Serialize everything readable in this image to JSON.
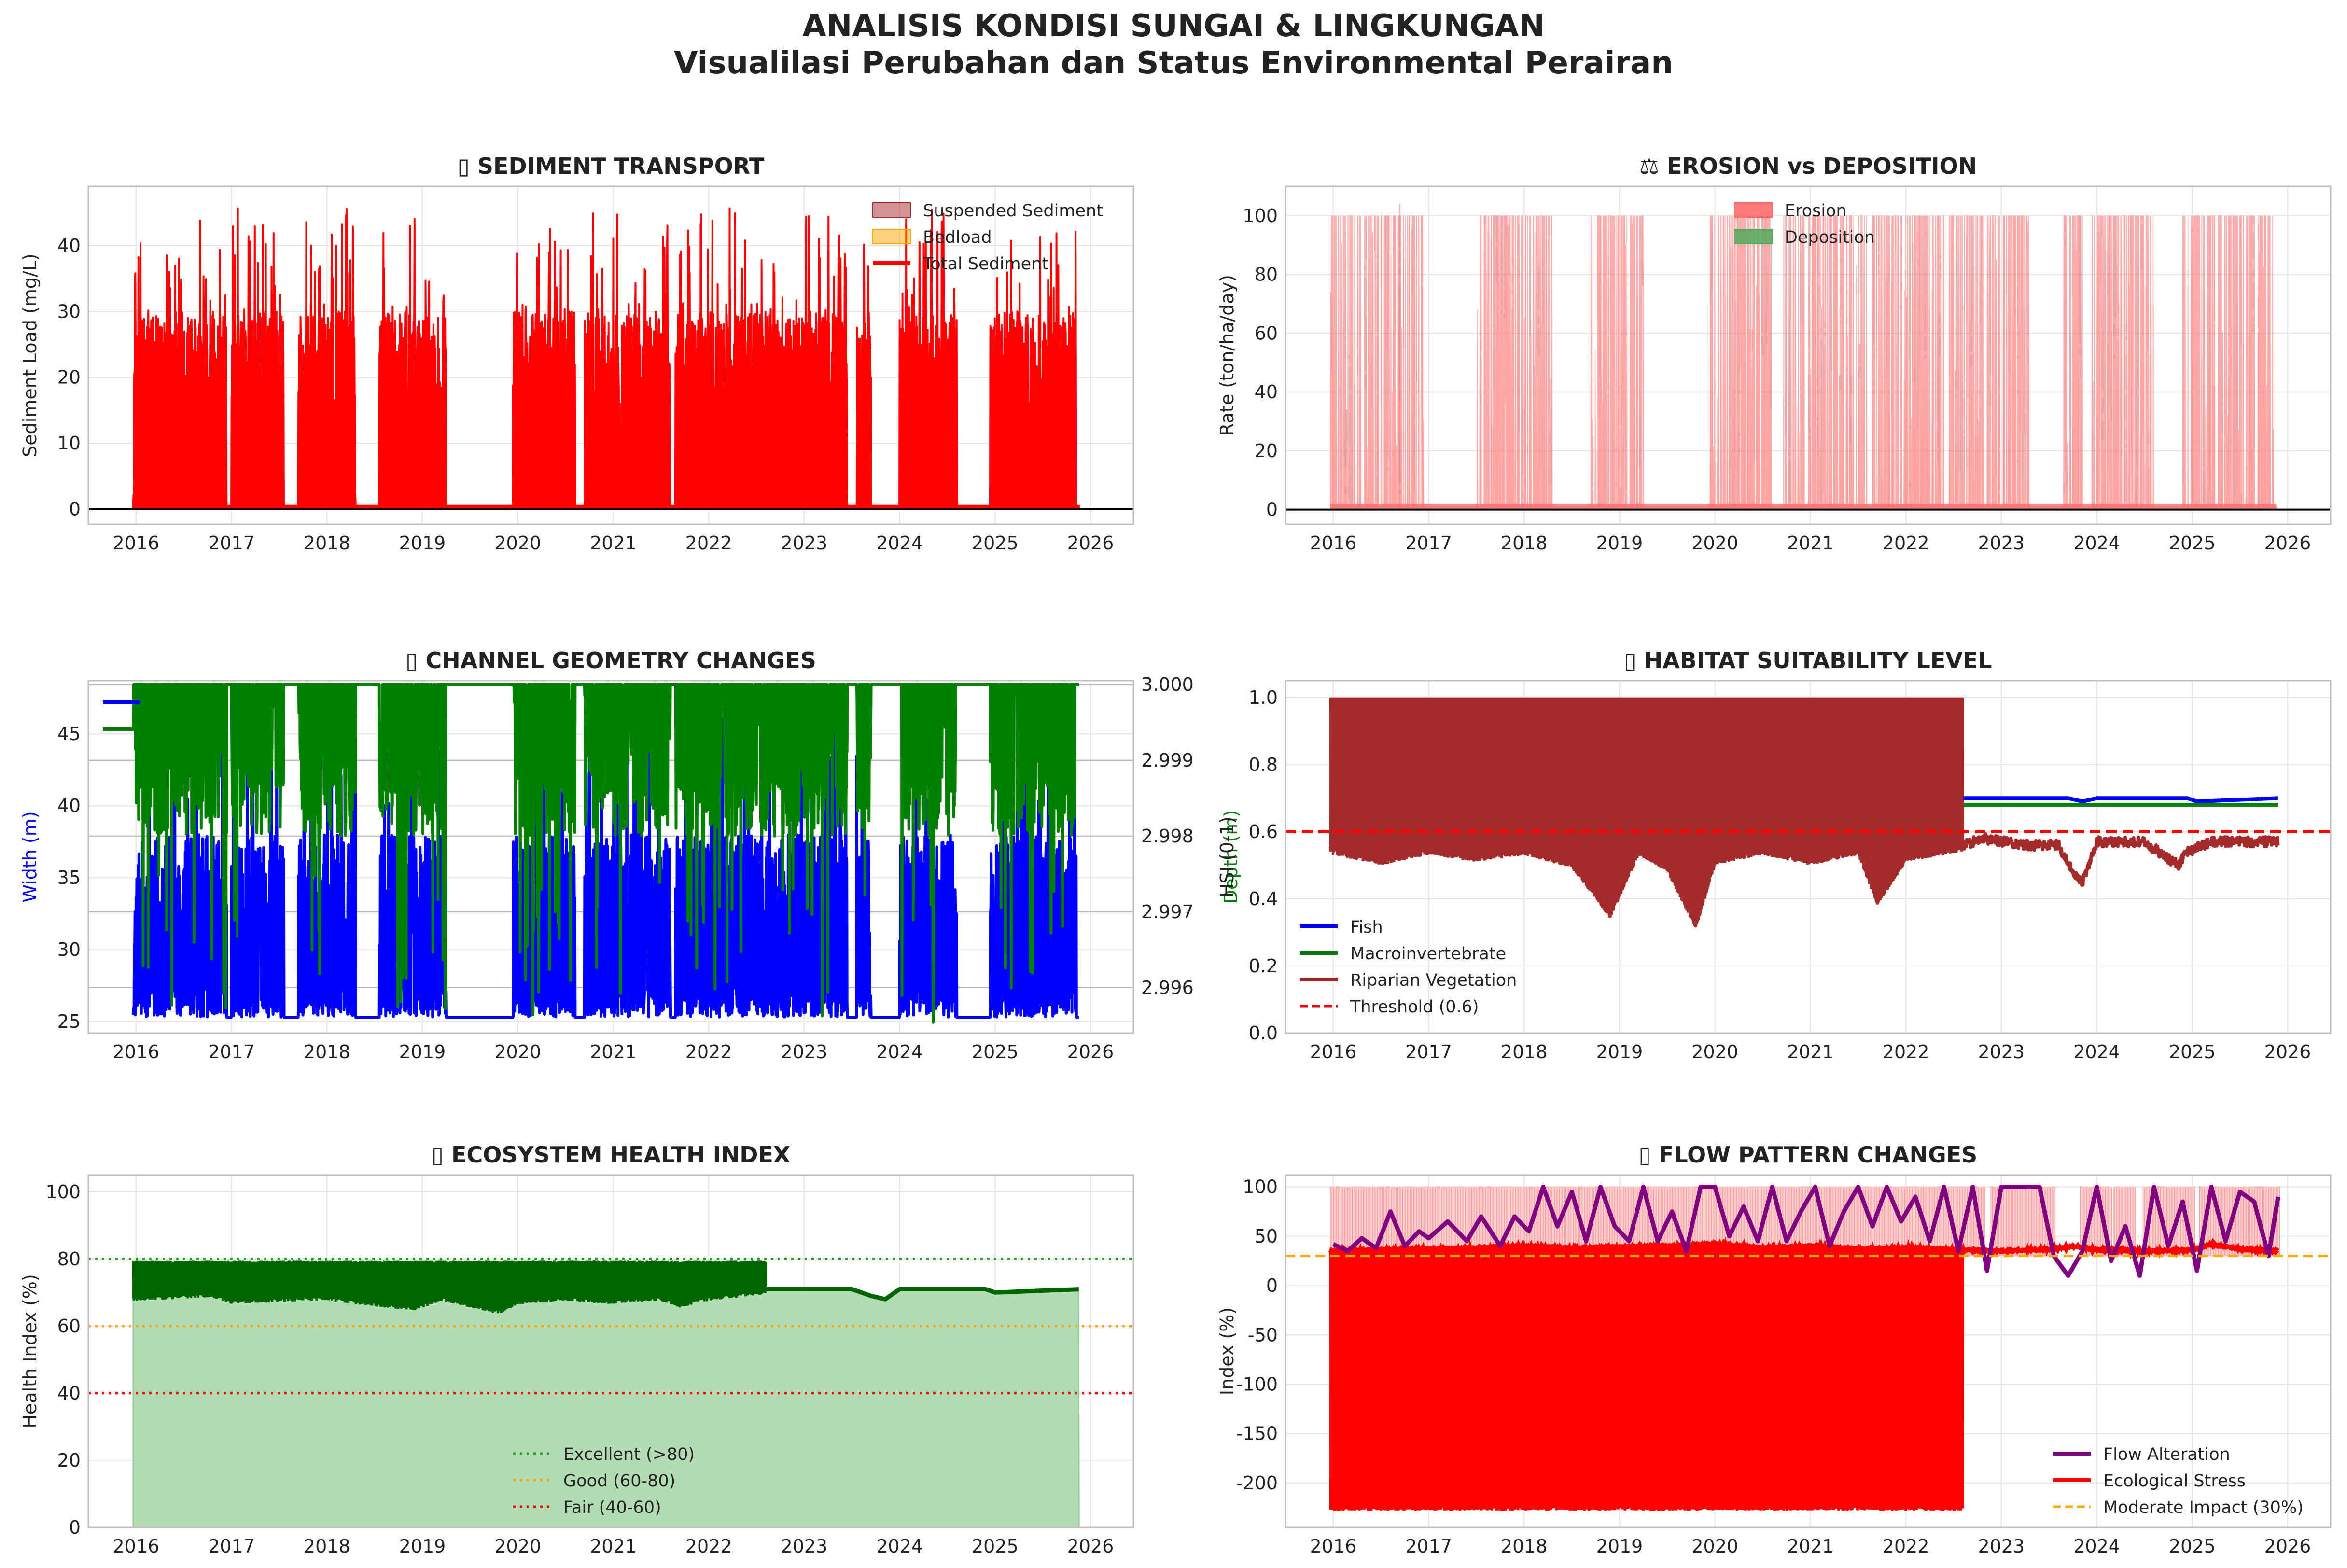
{
  "figure": {
    "title": "ANALISIS KONDISI SUNGAI & LINGKUNGAN",
    "subtitle": "Visualilasi Perubahan dan Status Environmental Perairan"
  },
  "chart_data": [
    {
      "id": "sediment",
      "type": "area",
      "title": "▯ SEDIMENT TRANSPORT",
      "xlabel": "",
      "ylabel": "Sediment Load (mg/L)",
      "xlim": [
        2015.5,
        2026.45
      ],
      "ylim": [
        -2.3,
        49
      ],
      "xticks": [
        2016,
        2017,
        2018,
        2019,
        2020,
        2021,
        2022,
        2023,
        2024,
        2025,
        2026
      ],
      "yticks": [
        0,
        10,
        20,
        30,
        40
      ],
      "grid": true,
      "legend_position": "top-right",
      "series": [
        {
          "name": "Suspended Sediment",
          "kind": "fill",
          "color": "#a52a2a",
          "opacity": 0.5
        },
        {
          "name": "Bedload",
          "kind": "fill",
          "color": "#ffa500",
          "opacity": 0.5
        },
        {
          "name": "Total Sediment",
          "kind": "line",
          "color": "#ff0000"
        }
      ],
      "total_sediment": {
        "baseline": 0.5,
        "active_periods": [
          [
            2015.97,
            2016.95
          ],
          [
            2017.0,
            2017.55
          ],
          [
            2017.7,
            2018.3
          ],
          [
            2018.55,
            2019.25
          ],
          [
            2019.95,
            2020.6
          ],
          [
            2020.7,
            2021.6
          ],
          [
            2021.65,
            2022.95
          ],
          [
            2022.95,
            2023.45
          ],
          [
            2023.55,
            2023.7
          ],
          [
            2024.0,
            2024.6
          ],
          [
            2024.95,
            2025.85
          ]
        ],
        "typical_range": [
          15,
          30
        ],
        "max_value": 46
      }
    },
    {
      "id": "erosion",
      "type": "area",
      "title": "⚖ EROSION vs DEPOSITION",
      "xlabel": "",
      "ylabel": "Rate (ton/ha/day)",
      "xlim": [
        2015.5,
        2026.45
      ],
      "ylim": [
        -5,
        110
      ],
      "xticks": [
        2016,
        2017,
        2018,
        2019,
        2020,
        2021,
        2022,
        2023,
        2024,
        2025,
        2026
      ],
      "yticks": [
        0,
        20,
        40,
        60,
        80,
        100
      ],
      "grid": true,
      "legend_position": "top-center",
      "series": [
        {
          "name": "Erosion",
          "kind": "fill",
          "color": "#ff6b6b"
        },
        {
          "name": "Deposition",
          "kind": "fill",
          "color": "#5fa85f"
        }
      ],
      "erosion": {
        "baseline": 1,
        "cap": 100,
        "max_value": 104,
        "active_periods": [
          [
            2015.97,
            2016.95
          ],
          [
            2017.5,
            2018.3
          ],
          [
            2018.7,
            2019.25
          ],
          [
            2019.95,
            2020.6
          ],
          [
            2020.7,
            2021.6
          ],
          [
            2021.65,
            2022.95
          ],
          [
            2022.95,
            2023.3
          ],
          [
            2023.65,
            2023.85
          ],
          [
            2023.95,
            2024.6
          ],
          [
            2024.9,
            2025.85
          ]
        ]
      }
    },
    {
      "id": "geometry",
      "type": "line",
      "title": "▯ CHANNEL GEOMETRY CHANGES",
      "xlabel": "",
      "ylabel": "Width (m)",
      "ylabel_right": "Depth (m)",
      "xlim": [
        2015.5,
        2026.45
      ],
      "ylim": [
        24.2,
        48.7
      ],
      "ylim_right": [
        2.9954,
        3.00005
      ],
      "xticks": [
        2016,
        2017,
        2018,
        2019,
        2020,
        2021,
        2022,
        2023,
        2024,
        2025,
        2026
      ],
      "yticks": [
        25,
        30,
        35,
        40,
        45
      ],
      "yticks_right": [
        2.996,
        2.997,
        2.998,
        2.999,
        3.0
      ],
      "ytick_labels_right": [
        "2.996",
        "2.997",
        "2.998",
        "2.999",
        "3.000"
      ],
      "grid": true,
      "legend_position": "top-left",
      "series": [
        {
          "name": "",
          "axis": "left",
          "color": "#0000ff"
        },
        {
          "name": "",
          "axis": "right",
          "color": "#008000"
        }
      ],
      "width": {
        "baseline": 25.3,
        "typical_range": [
          30,
          38
        ],
        "max_value": 48.4
      },
      "depth": {
        "max": 3.0,
        "typical_low": 2.998,
        "min_value": 2.9955
      },
      "active_periods": [
        [
          2015.97,
          2016.95
        ],
        [
          2017.0,
          2017.55
        ],
        [
          2017.7,
          2018.3
        ],
        [
          2018.55,
          2019.25
        ],
        [
          2019.95,
          2020.6
        ],
        [
          2020.7,
          2021.6
        ],
        [
          2021.65,
          2022.95
        ],
        [
          2022.95,
          2023.45
        ],
        [
          2023.55,
          2023.7
        ],
        [
          2024.0,
          2024.6
        ],
        [
          2024.95,
          2025.85
        ]
      ]
    },
    {
      "id": "habitat",
      "type": "line",
      "title": "▯ HABITAT SUITABILITY LEVEL",
      "xlabel": "",
      "ylabel": "HSI (0-1)",
      "xlim": [
        2015.5,
        2026.45
      ],
      "ylim": [
        0,
        1.05
      ],
      "xticks": [
        2016,
        2017,
        2018,
        2019,
        2020,
        2021,
        2022,
        2023,
        2024,
        2025,
        2026
      ],
      "yticks": [
        0.0,
        0.2,
        0.4,
        0.6,
        0.8,
        1.0
      ],
      "ytick_labels": [
        "0.0",
        "0.2",
        "0.4",
        "0.6",
        "0.8",
        "1.0"
      ],
      "grid": true,
      "legend_position": "bottom-left",
      "series": [
        {
          "name": "Fish",
          "color": "#0000ff",
          "values_after_2022_6": {
            "x": [
              2022.6,
              2023.7,
              2023.85,
              2024.0,
              2024.95,
              2025.05,
              2025.9
            ],
            "y": [
              0.7,
              0.7,
              0.69,
              0.7,
              0.7,
              0.69,
              0.7
            ]
          }
        },
        {
          "name": "Macroinvertebrate",
          "color": "#008000",
          "values_after_2022_6": {
            "x": [
              2022.6,
              2025.9
            ],
            "y": [
              0.68,
              0.68
            ]
          }
        },
        {
          "name": "Riparian Vegetation",
          "color": "#a52a2a",
          "envelope_until": 2022.6,
          "envelope_top": 1.0,
          "values": {
            "x": [
              2016.0,
              2016.5,
              2017.0,
              2017.5,
              2018.0,
              2018.5,
              2018.75,
              2018.9,
              2019.2,
              2019.5,
              2019.8,
              2020.0,
              2020.5,
              2021.0,
              2021.5,
              2021.7,
              2022.0,
              2022.6,
              2022.8,
              2023.3,
              2023.6,
              2023.75,
              2023.85,
              2024.0,
              2024.5,
              2024.85,
              2024.95,
              2025.2,
              2025.9
            ],
            "y": [
              0.55,
              0.52,
              0.55,
              0.53,
              0.55,
              0.51,
              0.42,
              0.36,
              0.55,
              0.5,
              0.33,
              0.52,
              0.55,
              0.52,
              0.55,
              0.4,
              0.53,
              0.56,
              0.58,
              0.56,
              0.56,
              0.48,
              0.45,
              0.57,
              0.57,
              0.5,
              0.54,
              0.57,
              0.57
            ]
          }
        },
        {
          "name": "Threshold (0.6)",
          "color": "#ff0000",
          "dashed": true,
          "value": 0.6
        }
      ]
    },
    {
      "id": "health",
      "type": "area",
      "title": "▯ ECOSYSTEM HEALTH INDEX",
      "xlabel": "",
      "ylabel": "Health Index (%)",
      "xlim": [
        2015.5,
        2026.45
      ],
      "ylim": [
        0,
        105
      ],
      "xticks": [
        2016,
        2017,
        2018,
        2019,
        2020,
        2021,
        2022,
        2023,
        2024,
        2025,
        2026
      ],
      "yticks": [
        0,
        20,
        40,
        60,
        80,
        100
      ],
      "grid": true,
      "legend_position": "bottom-center",
      "series": [
        {
          "name": "Health Index",
          "color": "#006400",
          "fill_color": "#b4dcb4",
          "envelope_until": 2022.6,
          "envelope_top": 79.5,
          "values": {
            "x": [
              2016.0,
              2016.8,
              2017.0,
              2017.8,
              2018.0,
              2018.6,
              2018.9,
              2019.2,
              2019.8,
              2020.0,
              2020.5,
              2021.0,
              2021.5,
              2021.7,
              2022.0,
              2022.6,
              2023.5,
              2023.7,
              2023.85,
              2024.0,
              2024.9,
              2025.0,
              2025.9
            ],
            "y": [
              69,
              70,
              68,
              69,
              69,
              67,
              66,
              69,
              65,
              68,
              69,
              68,
              69,
              67,
              69,
              71,
              71,
              69,
              68,
              71,
              71,
              70,
              71
            ]
          }
        },
        {
          "name": "Excellent (>80)",
          "color": "#2ca02c",
          "dotted": true,
          "value": 80
        },
        {
          "name": "Good (60-80)",
          "color": "#ffa500",
          "dotted": true,
          "value": 60
        },
        {
          "name": "Fair (40-60)",
          "color": "#ff0000",
          "dotted": true,
          "value": 40
        }
      ]
    },
    {
      "id": "flow",
      "type": "line",
      "title": "▯ FLOW PATTERN CHANGES",
      "xlabel": "",
      "ylabel": "Index (%)",
      "xlim": [
        2015.5,
        2026.45
      ],
      "ylim": [
        -245,
        112
      ],
      "xticks": [
        2016,
        2017,
        2018,
        2019,
        2020,
        2021,
        2022,
        2023,
        2024,
        2025,
        2026
      ],
      "yticks": [
        -200,
        -150,
        -100,
        -50,
        0,
        50,
        100
      ],
      "grid": true,
      "legend_position": "bottom-right",
      "series": [
        {
          "name": "Flow Alteration",
          "color": "#800080",
          "values": {
            "x": [
              2016.0,
              2016.15,
              2016.3,
              2016.45,
              2016.6,
              2016.75,
              2016.9,
              2017.0,
              2017.2,
              2017.4,
              2017.55,
              2017.75,
              2017.9,
              2018.05,
              2018.2,
              2018.35,
              2018.5,
              2018.65,
              2018.8,
              2018.95,
              2019.1,
              2019.25,
              2019.4,
              2019.55,
              2019.7,
              2019.85,
              2020.0,
              2020.15,
              2020.3,
              2020.45,
              2020.6,
              2020.75,
              2020.9,
              2021.05,
              2021.2,
              2021.35,
              2021.5,
              2021.65,
              2021.8,
              2021.95,
              2022.1,
              2022.25,
              2022.4,
              2022.55,
              2022.7,
              2022.85,
              2023.0,
              2023.2,
              2023.4,
              2023.55,
              2023.7,
              2023.85,
              2024.0,
              2024.15,
              2024.3,
              2024.45,
              2024.6,
              2024.75,
              2024.9,
              2025.05,
              2025.2,
              2025.35,
              2025.5,
              2025.65,
              2025.8,
              2025.9
            ],
            "y": [
              42,
              35,
              48,
              38,
              75,
              40,
              55,
              48,
              65,
              45,
              70,
              40,
              70,
              55,
              100,
              60,
              95,
              45,
              100,
              60,
              45,
              100,
              45,
              75,
              35,
              100,
              100,
              50,
              80,
              45,
              100,
              45,
              75,
              100,
              40,
              75,
              100,
              60,
              100,
              65,
              90,
              45,
              100,
              35,
              100,
              15,
              100,
              100,
              100,
              30,
              10,
              35,
              100,
              25,
              60,
              10,
              100,
              40,
              85,
              15,
              100,
              45,
              95,
              85,
              30,
              90
            ]
          }
        },
        {
          "name": "Ecological Stress",
          "color": "#ff0000",
          "envelope_until": 2022.6,
          "envelope_bottom": -228,
          "values": {
            "x": [
              2016.0,
              2016.5,
              2017.0,
              2017.5,
              2018.0,
              2018.5,
              2019.0,
              2019.5,
              2020.0,
              2020.5,
              2021.0,
              2021.5,
              2022.0,
              2022.6,
              2023.0,
              2023.5,
              2023.8,
              2024.0,
              2024.5,
              2025.0,
              2025.2,
              2025.5,
              2025.9
            ],
            "y": [
              35,
              36,
              37,
              38,
              40,
              38,
              39,
              40,
              42,
              38,
              40,
              37,
              38,
              36,
              35,
              37,
              40,
              36,
              35,
              36,
              42,
              37,
              35
            ]
          }
        },
        {
          "name": "Moderate Impact (30%)",
          "color": "#ffa500",
          "dashed": true,
          "value": 30
        }
      ],
      "shaded_band": {
        "color": "#ffb6b6",
        "from": 30,
        "to": 100,
        "until": 2025.9
      }
    }
  ]
}
